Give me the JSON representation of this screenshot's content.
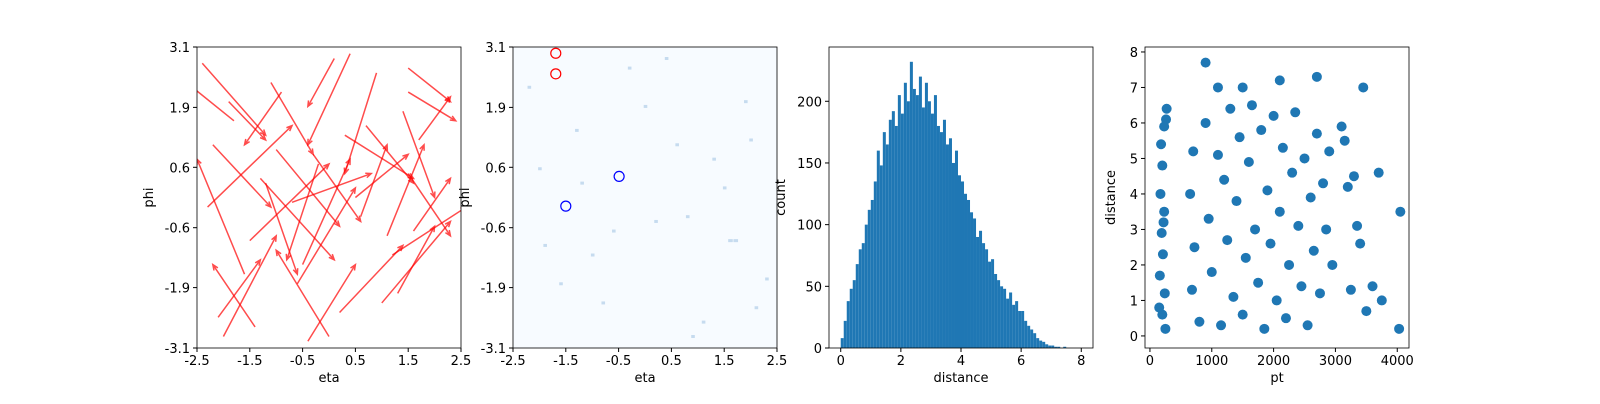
{
  "chart_data": [
    {
      "type": "quiver",
      "xlabel": "eta",
      "ylabel": "phi",
      "color": "#ff0000",
      "xlim": [
        -2.5,
        2.5
      ],
      "ylim": [
        -3.14,
        3.14
      ],
      "xticks": [
        -2.5,
        -1.5,
        -0.5,
        0.5,
        1.5,
        2.5
      ],
      "yticks": [
        {
          "value": -3.14,
          "label": "-3.1"
        },
        {
          "value": -1.88,
          "label": "-1.9"
        },
        {
          "value": -0.63,
          "label": "-0.6"
        },
        {
          "value": 0.63,
          "label": "0.6"
        },
        {
          "value": 1.88,
          "label": "1.9"
        },
        {
          "value": 3.14,
          "label": "3.1"
        }
      ],
      "x": [
        -2.4,
        -2.1,
        -1.8,
        -1.5,
        -1.2,
        -0.9,
        -0.6,
        -0.3,
        0.0,
        0.3,
        0.6,
        0.9,
        1.2,
        1.5,
        -2.3,
        -1.9,
        -1.4,
        -1.0,
        -0.5,
        0.1,
        0.5,
        1.0,
        1.4,
        1.6,
        -2.2,
        -1.6,
        -1.1,
        -0.7,
        -0.2,
        0.2,
        0.7,
        1.1,
        1.5,
        1.7,
        -2.0,
        -1.3,
        -0.4,
        0.4,
        1.3,
        1.5
      ],
      "y": [
        2.8,
        -2.5,
        1.6,
        -0.9,
        0.3,
        2.2,
        -1.8,
        0.9,
        -2.9,
        1.3,
        -0.4,
        2.6,
        -1.2,
        0.5,
        -0.2,
        2.0,
        -2.7,
        1.0,
        -1.4,
        2.9,
        0.0,
        -2.2,
        1.8,
        -0.7,
        1.1,
        -1.6,
        2.4,
        -0.1,
        0.7,
        -2.4,
        1.5,
        -0.8,
        2.7,
        1.2,
        -2.9,
        0.4,
        -3.0,
        3.0,
        -2.0,
        2.2
      ],
      "u": [
        1.2,
        0.8,
        -0.9,
        1.5,
        0.6,
        -0.7,
        1.1,
        0.9,
        -1.0,
        1.3,
        0.5,
        -0.6,
        1.4,
        0.8,
        1.6,
        0.7,
        -0.8,
        1.2,
        0.9,
        -0.5,
        1.0,
        1.3,
        0.6,
        0.7,
        1.1,
        -0.9,
        0.8,
        1.5,
        -0.6,
        1.2,
        0.9,
        0.7,
        0.8,
        0.6,
        1.0,
        1.4,
        0.9,
        -0.8,
        0.7,
        0.9
      ],
      "v": [
        -1.5,
        1.2,
        0.8,
        1.6,
        -1.9,
        -1.1,
        2.0,
        -1.4,
        1.8,
        -0.9,
        1.5,
        -2.1,
        1.0,
        -1.3,
        1.7,
        -0.8,
        1.3,
        -1.6,
        2.2,
        -1.0,
        0.9,
        1.7,
        -1.8,
        1.1,
        -1.3,
        2.4,
        -1.5,
        0.6,
        -2.0,
        1.4,
        -1.2,
        1.9,
        -0.7,
        0.9,
        2.1,
        -1.7,
        1.6,
        -1.9,
        1.4,
        -0.6
      ]
    },
    {
      "type": "heatmap",
      "xlabel": "eta",
      "ylabel": "phi",
      "color": "#c6dbef",
      "background": "#f7fbff",
      "xlim": [
        -2.5,
        2.5
      ],
      "ylim": [
        -3.14,
        3.14
      ],
      "xticks": [
        -2.5,
        -1.5,
        -0.5,
        0.5,
        1.5,
        2.5
      ],
      "yticks": [
        {
          "value": -3.14,
          "label": "-3.1"
        },
        {
          "value": -1.88,
          "label": "-1.9"
        },
        {
          "value": -0.63,
          "label": "-0.6"
        },
        {
          "value": 0.63,
          "label": "0.6"
        },
        {
          "value": 1.88,
          "label": "1.9"
        },
        {
          "value": 3.14,
          "label": "3.1"
        }
      ],
      "cells": {
        "x": [
          -2.2,
          -1.9,
          -1.3,
          -0.8,
          -0.3,
          0.2,
          0.6,
          1.1,
          1.5,
          1.9,
          2.3,
          -2.0,
          -1.0,
          0.0,
          0.9,
          1.6,
          -1.6,
          0.4,
          1.3,
          2.1,
          -0.6,
          0.8,
          1.7,
          -1.2,
          2.0
        ],
        "y": [
          2.3,
          -1.0,
          1.4,
          -2.2,
          2.7,
          -0.5,
          1.1,
          -2.6,
          0.2,
          2.0,
          -1.7,
          0.6,
          -1.2,
          1.9,
          -2.9,
          -0.9,
          -1.8,
          2.9,
          0.8,
          -2.3,
          -0.7,
          -0.4,
          -0.9,
          0.3,
          1.2
        ],
        "values": [
          1,
          1,
          1,
          1,
          1,
          1,
          1,
          1,
          1,
          1,
          1,
          1,
          1,
          1,
          1,
          2,
          1,
          1,
          1,
          1,
          1,
          1,
          2,
          1,
          1
        ]
      },
      "markers": {
        "x": [
          -1.69,
          -1.69,
          -0.49,
          -1.5
        ],
        "y": [
          3.01,
          2.58,
          0.44,
          -0.18
        ],
        "colors": [
          "#ff0000",
          "#ff0000",
          "#0000ff",
          "#0000ff"
        ]
      }
    },
    {
      "type": "histogram",
      "xlabel": "distance",
      "ylabel": "count",
      "color": "#1f77b4",
      "xlim": [
        -0.39,
        8.39
      ],
      "ylim": [
        0,
        244
      ],
      "xticks": [
        0,
        2,
        4,
        6,
        8
      ],
      "yticks": [
        0,
        50,
        100,
        150,
        200
      ],
      "bins": [
        0,
        0.1,
        0.2,
        0.3,
        0.4,
        0.5,
        0.6,
        0.7,
        0.8,
        0.9,
        1.0,
        1.1,
        1.2,
        1.3,
        1.4,
        1.5,
        1.6,
        1.7,
        1.8,
        1.9,
        2.0,
        2.1,
        2.2,
        2.3,
        2.4,
        2.5,
        2.6,
        2.7,
        2.8,
        2.9,
        3.0,
        3.1,
        3.2,
        3.3,
        3.4,
        3.5,
        3.6,
        3.7,
        3.8,
        3.9,
        4.0,
        4.1,
        4.2,
        4.3,
        4.4,
        4.5,
        4.6,
        4.7,
        4.8,
        4.9,
        5.0,
        5.1,
        5.2,
        5.3,
        5.4,
        5.5,
        5.6,
        5.7,
        5.8,
        5.9,
        6.0,
        6.1,
        6.2,
        6.3,
        6.4,
        6.5,
        6.6,
        6.7,
        6.8,
        6.9,
        7.0,
        7.1,
        7.2,
        7.3,
        7.4,
        7.5,
        7.6,
        7.7,
        7.8,
        7.9,
        8.0
      ],
      "counts": [
        8,
        22,
        38,
        48,
        55,
        68,
        80,
        85,
        100,
        112,
        120,
        135,
        160,
        148,
        175,
        165,
        185,
        192,
        180,
        205,
        190,
        215,
        200,
        232,
        210,
        205,
        220,
        195,
        215,
        200,
        190,
        205,
        180,
        175,
        185,
        165,
        170,
        150,
        160,
        140,
        135,
        125,
        120,
        110,
        105,
        90,
        95,
        85,
        80,
        70,
        72,
        60,
        55,
        50,
        48,
        40,
        45,
        35,
        38,
        30,
        30,
        22,
        18,
        15,
        12,
        8,
        6,
        5,
        3,
        2,
        2,
        1,
        1,
        0,
        1,
        0,
        0,
        0,
        0,
        0
      ]
    },
    {
      "type": "scatter",
      "xlabel": "pt",
      "ylabel": "distance",
      "color": "#1f77b4",
      "xlim": [
        -80,
        4190
      ],
      "ylim": [
        -0.34,
        8.14
      ],
      "xticks": [
        0,
        1000,
        2000,
        3000,
        4000
      ],
      "yticks": [
        0,
        1,
        2,
        3,
        4,
        5,
        6,
        7,
        8
      ],
      "x": [
        180,
        200,
        170,
        230,
        190,
        210,
        160,
        240,
        200,
        250,
        260,
        230,
        270,
        150,
        220,
        700,
        650,
        720,
        680,
        800,
        900,
        950,
        1000,
        1100,
        1150,
        1200,
        1250,
        1300,
        1350,
        1400,
        1450,
        1500,
        1550,
        1600,
        1650,
        1700,
        1750,
        1800,
        1850,
        1900,
        1950,
        2000,
        2050,
        2100,
        2150,
        2200,
        2250,
        2300,
        2350,
        2400,
        2450,
        2500,
        2550,
        2600,
        2650,
        2700,
        2750,
        2800,
        2850,
        2900,
        2950,
        1100,
        1500,
        2100,
        2700,
        900,
        3450,
        3100,
        3200,
        3300,
        3400,
        3250,
        3600,
        3700,
        3750,
        3500,
        4030,
        4050,
        3350,
        3150
      ],
      "y": [
        5.4,
        4.8,
        4.0,
        3.5,
        2.9,
        2.3,
        1.7,
        1.2,
        0.6,
        0.2,
        6.1,
        5.9,
        6.4,
        0.8,
        3.2,
        5.2,
        4.0,
        2.5,
        1.3,
        0.4,
        6.0,
        3.3,
        1.8,
        5.1,
        0.3,
        4.4,
        2.7,
        6.4,
        1.1,
        3.8,
        5.6,
        0.6,
        2.2,
        4.9,
        6.5,
        3.0,
        1.5,
        5.8,
        0.2,
        4.1,
        2.6,
        6.2,
        1.0,
        3.5,
        5.3,
        0.5,
        2.0,
        4.6,
        6.3,
        3.1,
        1.4,
        5.0,
        0.3,
        3.9,
        2.4,
        5.7,
        1.2,
        4.3,
        3.0,
        5.2,
        2.0,
        7.0,
        7.0,
        7.2,
        7.3,
        7.7,
        7.0,
        5.9,
        4.2,
        4.5,
        2.6,
        1.3,
        1.4,
        4.6,
        1.0,
        0.7,
        0.2,
        3.5,
        3.1,
        5.5
      ]
    }
  ]
}
